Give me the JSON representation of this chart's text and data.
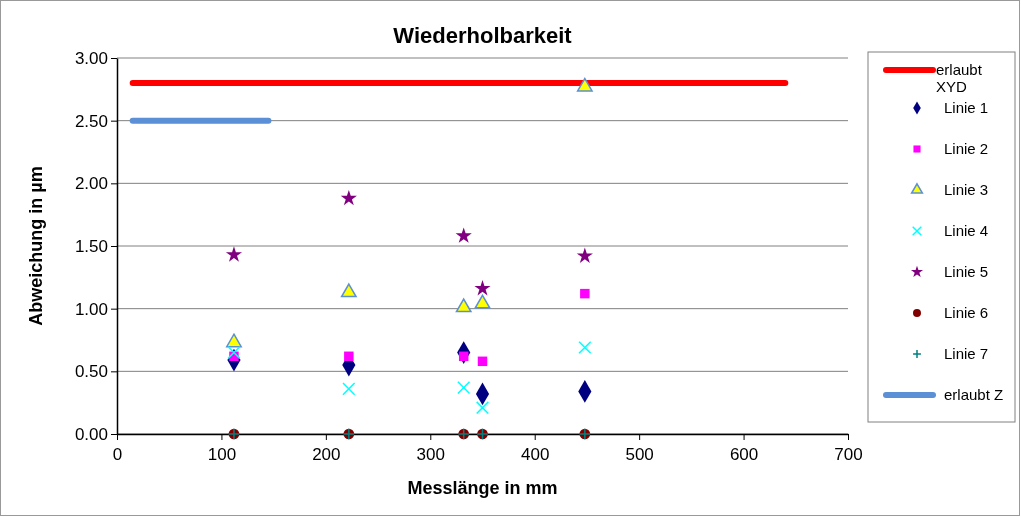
{
  "chart_data": {
    "type": "scatter",
    "title": "Wiederholbarkeit",
    "xlabel": "Messlänge in mm",
    "ylabel": "Abweichung in µm",
    "xlim": [
      0,
      700
    ],
    "xticks": [
      0,
      100,
      200,
      300,
      400,
      500,
      600,
      700
    ],
    "ylim": [
      0,
      3
    ],
    "yticks": [
      {
        "value": 0,
        "label": "0.00"
      },
      {
        "value": 0.5,
        "label": "0.50"
      },
      {
        "value": 1,
        "label": "1.00"
      },
      {
        "value": 1.5,
        "label": "1.50"
      },
      {
        "value": 2,
        "label": "2.00"
      },
      {
        "value": 2.5,
        "label": "2.50"
      },
      {
        "value": 3,
        "label": "3.00"
      }
    ],
    "grid": "y",
    "legend": "right",
    "series": [
      {
        "name": "erlaubt XYD",
        "type": "line",
        "color": "#ff0000",
        "x": [
          15,
          640
        ],
        "values": [
          2.8,
          2.8
        ]
      },
      {
        "name": "Linie 1",
        "color": "#000080",
        "marker": "diamond",
        "x": [
          112,
          222,
          332,
          350,
          448
        ],
        "values": [
          0.59,
          0.55,
          0.65,
          0.32,
          0.34
        ]
      },
      {
        "name": "Linie 2",
        "color": "#ff00ff",
        "marker": "square",
        "x": [
          112,
          222,
          332,
          350,
          448
        ],
        "values": [
          0.62,
          0.62,
          0.62,
          0.58,
          1.12
        ]
      },
      {
        "name": "Linie 3",
        "color": "#ffff00",
        "marker": "triangle",
        "x": [
          112,
          222,
          332,
          350,
          448
        ],
        "values": [
          0.73,
          1.13,
          1.01,
          1.04,
          2.77
        ]
      },
      {
        "name": "Linie 4",
        "color": "#00ffff",
        "marker": "cross",
        "x": [
          112,
          222,
          332,
          350,
          448
        ],
        "values": [
          0.65,
          0.36,
          0.37,
          0.21,
          0.69
        ]
      },
      {
        "name": "Linie 5",
        "color": "#800080",
        "marker": "star",
        "x": [
          112,
          222,
          332,
          350,
          448
        ],
        "values": [
          1.43,
          1.88,
          1.58,
          1.16,
          1.42
        ]
      },
      {
        "name": "Linie 6",
        "color": "#800000",
        "marker": "circle",
        "x": [
          112,
          222,
          332,
          350,
          448
        ],
        "values": [
          0,
          0,
          0,
          0,
          0
        ]
      },
      {
        "name": "Linie 7",
        "color": "#008080",
        "marker": "plus",
        "x": [
          112,
          222,
          332,
          350,
          448
        ],
        "values": [
          0,
          0,
          0,
          0,
          0
        ]
      },
      {
        "name": "erlaubt Z",
        "type": "line",
        "color": "#5b8fd6",
        "x": [
          15,
          145
        ],
        "values": [
          2.5,
          2.5
        ]
      }
    ]
  }
}
